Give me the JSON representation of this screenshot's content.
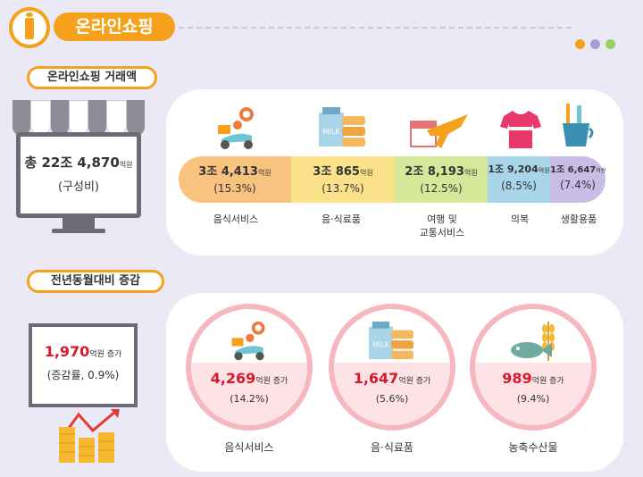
{
  "header": {
    "title": "온라인쇼핑"
  },
  "colors": {
    "accent": "#f5a11c",
    "increase": "#d7192c",
    "dots": [
      "#f5a11c",
      "#a99bd8",
      "#9bd05a"
    ]
  },
  "section1": {
    "title": "온라인쇼핑 거래액",
    "total_prefix": "총 22조 4,870",
    "total_unit": "억원",
    "total_sub": "(구성비)",
    "segments": [
      {
        "value": "3조 4,413",
        "unit": "억원",
        "share": "(15.3%)",
        "label": "음식서비스",
        "color": "#f8c27f",
        "icon": "delivery-scooter-icon"
      },
      {
        "value": "3조 865",
        "unit": "억원",
        "share": "(13.7%)",
        "label": "음·식료품",
        "color": "#fbe28a",
        "icon": "milk-carton-icon"
      },
      {
        "value": "2조 8,193",
        "unit": "억원",
        "share": "(12.5%)",
        "label": "여행 및",
        "label2": "교통서비스",
        "color": "#d6e79a",
        "icon": "airplane-calendar-icon"
      },
      {
        "value": "1조 9,204",
        "unit": "억원",
        "share": "(8.5%)",
        "label": "의복",
        "color": "#a9d5e8",
        "icon": "shirt-icon"
      },
      {
        "value": "1조 6,647",
        "unit": "억원",
        "share": "(7.4%)",
        "label": "생활용품",
        "color": "#c9bde6",
        "icon": "toothbrush-cup-icon"
      }
    ]
  },
  "section2": {
    "title": "전년동월대비 증감",
    "total_value": "1,970",
    "total_unit": "억원 증가",
    "total_rate": "(증감률, 0.9%)",
    "items": [
      {
        "value": "4,269",
        "unit": "억원 증가",
        "rate": "(14.2%)",
        "label": "음식서비스",
        "icon": "delivery-scooter-icon"
      },
      {
        "value": "1,647",
        "unit": "억원 증가",
        "rate": "(5.6%)",
        "label": "음·식료품",
        "icon": "milk-carton-icon"
      },
      {
        "value": "989",
        "unit": "억원 증가",
        "rate": "(9.4%)",
        "label": "농축수산물",
        "icon": "fish-wheat-icon"
      }
    ]
  }
}
